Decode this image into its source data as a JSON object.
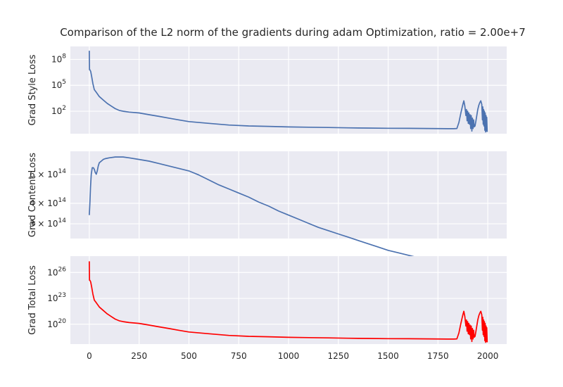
{
  "chart_data": {
    "type": "line",
    "title": "Comparison of the L2 norm of the gradients during adam Optimization, ratio = 2.00e+7",
    "grid": true,
    "xlim": [
      -95,
      2095
    ],
    "x_ticks": [
      0,
      250,
      500,
      750,
      1000,
      1250,
      1500,
      1750,
      2000
    ],
    "subplots": [
      {
        "ylabel": "Grad Style Loss",
        "yscale": "log",
        "ylim_log10": [
          -0.6,
          9.5
        ],
        "y_ticks": [
          {
            "log10": 8,
            "base": "10",
            "exp": "8"
          },
          {
            "log10": 5,
            "base": "10",
            "exp": "5"
          },
          {
            "log10": 2,
            "base": "10",
            "exp": "2"
          }
        ],
        "color": "#4c72b0",
        "series": [
          {
            "x": [
              0,
              1,
              3,
              7,
              12,
              18,
              25,
              35,
              50,
              70,
              90,
              110,
              130,
              150,
              170,
              200,
              250,
              300,
              350,
              400,
              450,
              500,
              600,
              700,
              800,
              900,
              1000,
              1100,
              1200,
              1300,
              1400,
              1500,
              1600,
              1700,
              1800,
              1830,
              1845,
              1855,
              1865,
              1875,
              1880,
              1885,
              1890,
              1893,
              1896,
              1899,
              1902,
              1905,
              1908,
              1911,
              1914,
              1917,
              1920,
              1923,
              1926,
              1929,
              1932,
              1936,
              1940,
              1945,
              1950,
              1955,
              1960,
              1965,
              1970,
              1973,
              1975,
              1977,
              1979,
              1981,
              1983,
              1985,
              1987,
              1989,
              1991,
              1993,
              1995,
              1997
            ],
            "log10_y": [
              9.0,
              6.8,
              6.8,
              6.6,
              6.0,
              5.2,
              4.5,
              4.2,
              3.7,
              3.3,
              2.9,
              2.6,
              2.3,
              2.1,
              2.0,
              1.9,
              1.8,
              1.6,
              1.4,
              1.2,
              1.0,
              0.8,
              0.6,
              0.4,
              0.3,
              0.25,
              0.18,
              0.15,
              0.12,
              0.08,
              0.05,
              0.03,
              0.02,
              0.0,
              -0.02,
              -0.02,
              0.0,
              0.7,
              1.8,
              2.8,
              3.2,
              2.6,
              1.5,
              2.2,
              0.9,
              2.0,
              0.6,
              1.8,
              0.5,
              1.6,
              0.0,
              1.5,
              -0.3,
              1.2,
              0.0,
              1.0,
              0.2,
              0.3,
              0.8,
              1.5,
              2.2,
              2.7,
              3.0,
              3.2,
              2.8,
              1.0,
              2.5,
              0.5,
              2.2,
              0.3,
              2.0,
              -0.2,
              1.8,
              -0.4,
              1.5,
              -0.3,
              1.3,
              -0.4
            ]
          }
        ]
      },
      {
        "ylabel": "Grad Content Loss",
        "yscale": "log",
        "ylim_log10": [
          14.387,
          14.92
        ],
        "y_ticks": [
          {
            "log10": 14.778,
            "base": "6 × 10",
            "exp": "14"
          },
          {
            "log10": 14.602,
            "base": "4 × 10",
            "exp": "14"
          },
          {
            "log10": 14.477,
            "base": "3 × 10",
            "exp": "14"
          }
        ],
        "color": "#4c72b0",
        "series": [
          {
            "x": [
              0,
              3,
              6,
              10,
              15,
              20,
              25,
              30,
              35,
              40,
              45,
              50,
              60,
              70,
              80,
              100,
              130,
              170,
              200,
              250,
              300,
              350,
              400,
              450,
              500,
              550,
              600,
              650,
              700,
              750,
              800,
              850,
              900,
              950,
              1000,
              1050,
              1100,
              1150,
              1200,
              1250,
              1300,
              1350,
              1400,
              1450,
              1500,
              1550,
              1600,
              1650,
              1700,
              1750,
              1800,
              1850,
              1880,
              1900,
              1950,
              2000
            ],
            "log10_y": [
              14.53,
              14.6,
              14.7,
              14.78,
              14.82,
              14.82,
              14.81,
              14.79,
              14.78,
              14.8,
              14.83,
              14.85,
              14.86,
              14.87,
              14.875,
              14.88,
              14.885,
              14.885,
              14.88,
              14.87,
              14.86,
              14.845,
              14.83,
              14.815,
              14.8,
              14.775,
              14.745,
              14.715,
              14.69,
              14.665,
              14.64,
              14.61,
              14.585,
              14.555,
              14.53,
              14.505,
              14.48,
              14.455,
              14.435,
              14.415,
              14.395,
              14.375,
              14.355,
              14.335,
              14.315,
              14.3,
              14.285,
              14.27,
              14.255,
              14.24,
              14.228,
              14.215,
              14.205,
              14.2,
              14.19,
              14.183
            ]
          }
        ]
      },
      {
        "ylabel": "Grad Total Loss",
        "yscale": "log",
        "ylim_log10": [
          17.7,
          27.9
        ],
        "y_ticks": [
          {
            "log10": 26,
            "base": "10",
            "exp": "26"
          },
          {
            "log10": 23,
            "base": "10",
            "exp": "23"
          },
          {
            "log10": 20,
            "base": "10",
            "exp": "20"
          }
        ],
        "color": "#ff0000",
        "series": [
          {
            "x": [
              0,
              1,
              3,
              7,
              12,
              18,
              25,
              35,
              50,
              70,
              90,
              110,
              130,
              150,
              170,
              200,
              250,
              300,
              350,
              400,
              450,
              500,
              600,
              700,
              800,
              900,
              1000,
              1100,
              1200,
              1300,
              1400,
              1500,
              1600,
              1700,
              1800,
              1830,
              1845,
              1855,
              1865,
              1875,
              1880,
              1885,
              1890,
              1893,
              1896,
              1899,
              1902,
              1905,
              1908,
              1911,
              1914,
              1917,
              1920,
              1923,
              1926,
              1929,
              1932,
              1936,
              1940,
              1945,
              1950,
              1955,
              1960,
              1965,
              1970,
              1973,
              1975,
              1977,
              1979,
              1981,
              1983,
              1985,
              1987,
              1989,
              1991,
              1993,
              1995,
              1997
            ],
            "log10_y": [
              27.3,
              25.1,
              25.1,
              24.9,
              24.3,
              23.5,
              22.8,
              22.5,
              22.0,
              21.6,
              21.2,
              20.9,
              20.6,
              20.4,
              20.3,
              20.2,
              20.1,
              19.9,
              19.7,
              19.5,
              19.3,
              19.1,
              18.9,
              18.7,
              18.6,
              18.55,
              18.48,
              18.45,
              18.42,
              18.38,
              18.35,
              18.33,
              18.32,
              18.3,
              18.28,
              18.28,
              18.3,
              19.0,
              20.1,
              21.1,
              21.5,
              20.9,
              19.8,
              20.5,
              19.2,
              20.3,
              18.9,
              20.1,
              18.8,
              19.9,
              18.3,
              19.8,
              18.0,
              19.5,
              18.3,
              19.3,
              18.5,
              18.6,
              19.1,
              19.8,
              20.5,
              21.0,
              21.3,
              21.5,
              21.1,
              19.3,
              20.8,
              18.8,
              20.5,
              18.6,
              20.3,
              18.1,
              20.1,
              17.9,
              19.8,
              18.0,
              19.6,
              17.9
            ]
          }
        ]
      }
    ]
  }
}
